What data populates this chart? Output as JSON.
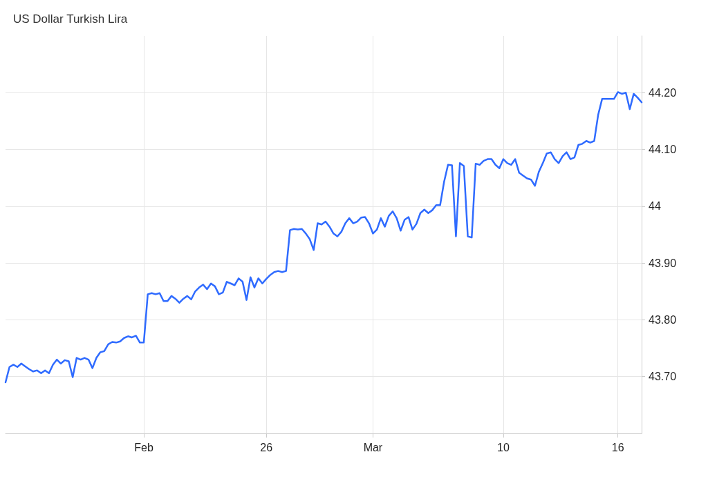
{
  "chart_data": {
    "type": "line",
    "title": "US Dollar Turkish Lira",
    "categories": [
      null,
      null,
      null,
      null,
      null,
      null,
      null,
      null,
      null,
      null,
      null,
      null,
      null,
      null,
      null,
      null,
      null,
      null,
      null,
      null,
      null,
      null,
      null,
      null,
      null,
      null,
      null,
      null,
      null,
      null,
      null,
      null,
      null,
      null,
      null,
      "Feb",
      null,
      null,
      null,
      null,
      null,
      null,
      null,
      null,
      null,
      null,
      null,
      null,
      null,
      null,
      null,
      null,
      null,
      null,
      null,
      null,
      null,
      null,
      null,
      null,
      null,
      null,
      null,
      null,
      null,
      null,
      "26",
      null,
      null,
      null,
      null,
      null,
      null,
      null,
      null,
      null,
      null,
      null,
      null,
      null,
      null,
      null,
      null,
      null,
      null,
      null,
      null,
      null,
      null,
      null,
      null,
      null,
      null,
      "Mar",
      null,
      null,
      null,
      null,
      null,
      null,
      null,
      null,
      null,
      null,
      null,
      null,
      null,
      null,
      null,
      null,
      null,
      null,
      null,
      null,
      null,
      null,
      null,
      null,
      null,
      null,
      null,
      null,
      null,
      null,
      null,
      null,
      "10",
      null,
      null,
      null,
      null,
      null,
      null,
      null,
      null,
      null,
      null,
      null,
      null,
      null,
      null,
      null,
      null,
      null,
      null,
      null,
      null,
      null,
      null,
      null,
      null,
      null,
      null,
      null,
      null,
      "16",
      null,
      null,
      null,
      null,
      null,
      null
    ],
    "series": [
      {
        "color": "#2f6bff",
        "values": [
          43.69,
          43.717,
          43.721,
          43.717,
          43.723,
          43.718,
          43.713,
          43.709,
          43.711,
          43.706,
          43.711,
          43.706,
          43.721,
          43.73,
          43.723,
          43.729,
          43.727,
          43.699,
          43.733,
          43.73,
          43.733,
          43.73,
          43.715,
          43.733,
          43.743,
          43.745,
          43.757,
          43.761,
          43.76,
          43.762,
          43.768,
          43.771,
          43.769,
          43.772,
          43.76,
          43.76,
          43.845,
          43.847,
          43.845,
          43.847,
          43.833,
          43.833,
          43.842,
          43.837,
          43.83,
          43.837,
          43.842,
          43.836,
          43.85,
          43.857,
          43.862,
          43.854,
          43.864,
          43.859,
          43.845,
          43.848,
          43.867,
          43.864,
          43.861,
          43.873,
          43.867,
          43.835,
          43.875,
          43.857,
          43.873,
          43.864,
          43.872,
          43.879,
          43.884,
          43.886,
          43.884,
          43.886,
          43.958,
          43.96,
          43.959,
          43.96,
          43.952,
          43.942,
          43.923,
          43.97,
          43.968,
          43.973,
          43.964,
          43.952,
          43.947,
          43.955,
          43.97,
          43.979,
          43.97,
          43.973,
          43.98,
          43.981,
          43.97,
          43.952,
          43.959,
          43.979,
          43.964,
          43.983,
          43.991,
          43.979,
          43.957,
          43.976,
          43.981,
          43.959,
          43.969,
          43.988,
          43.994,
          43.988,
          43.993,
          44.002,
          44.002,
          44.043,
          44.073,
          44.072,
          43.947,
          44.076,
          44.071,
          43.947,
          43.945,
          44.075,
          44.073,
          44.08,
          44.083,
          44.083,
          44.073,
          44.067,
          44.083,
          44.076,
          44.073,
          44.083,
          44.059,
          44.054,
          44.049,
          44.047,
          44.036,
          44.061,
          44.076,
          44.093,
          44.095,
          44.083,
          44.076,
          44.088,
          44.095,
          44.083,
          44.086,
          44.108,
          44.11,
          44.115,
          44.112,
          44.115,
          44.161,
          44.189,
          44.189,
          44.189,
          44.189,
          44.201,
          44.198,
          44.2,
          44.171,
          44.198,
          44.191,
          44.183
        ]
      }
    ],
    "ylim": [
      43.6,
      44.3
    ],
    "yticks": [
      {
        "value": 43.7,
        "label": "43.70"
      },
      {
        "value": 43.8,
        "label": "43.80"
      },
      {
        "value": 43.9,
        "label": "43.90"
      },
      44,
      {
        "value": 44.1,
        "label": "44.10"
      },
      {
        "value": 44.2,
        "label": "44.20"
      }
    ],
    "grid": true,
    "marker": "none",
    "line_style": "solid"
  }
}
